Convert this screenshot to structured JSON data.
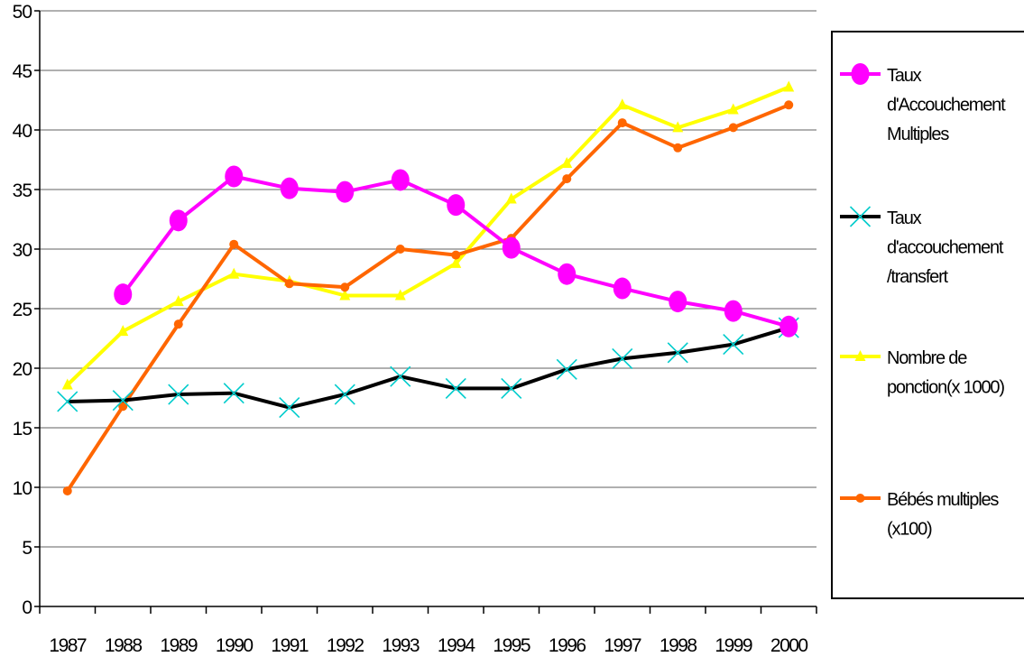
{
  "chart_data": {
    "type": "line",
    "x": [
      "1987",
      "1988",
      "1989",
      "1990",
      "1991",
      "1992",
      "1993",
      "1994",
      "1995",
      "1996",
      "1997",
      "1998",
      "1999",
      "2000"
    ],
    "ylim": [
      0,
      50
    ],
    "yticks": [
      "0",
      "5",
      "10",
      "15",
      "20",
      "25",
      "30",
      "35",
      "40",
      "45",
      "50"
    ],
    "grid": true,
    "legend_position": "right",
    "series": [
      {
        "name": "Taux d'Accouchement Multiples",
        "legend_lines": [
          "Taux",
          "d'Accouchement",
          "Multiples"
        ],
        "color": "#ff00ff",
        "marker": "circle-large",
        "values": [
          null,
          26.2,
          32.4,
          36.1,
          35.1,
          34.8,
          35.8,
          33.7,
          30.1,
          27.9,
          26.7,
          25.6,
          24.8,
          23.5
        ]
      },
      {
        "name": "Taux d'accouchement /transfert",
        "legend_lines": [
          "Taux",
          "d'accouchement",
          "/transfert"
        ],
        "color": "#000000",
        "marker_color": "#00cccc",
        "marker": "x",
        "values": [
          17.2,
          17.3,
          17.8,
          17.9,
          16.7,
          17.8,
          19.3,
          18.3,
          18.3,
          19.9,
          20.8,
          21.3,
          22.0,
          23.4
        ]
      },
      {
        "name": "Nombre de ponction(x 1000)",
        "legend_lines": [
          "Nombre de",
          "ponction(x 1000)"
        ],
        "color": "#ffff00",
        "marker": "triangle",
        "values": [
          18.6,
          23.1,
          25.6,
          27.9,
          27.3,
          26.1,
          26.1,
          28.8,
          34.2,
          37.2,
          42.1,
          40.2,
          41.7,
          43.6
        ]
      },
      {
        "name": "Bébés multiples (x100)",
        "legend_lines": [
          "Bébés multiples",
          "(x100)"
        ],
        "color": "#ff6600",
        "marker": "dot",
        "values": [
          9.7,
          16.8,
          23.7,
          30.4,
          27.1,
          26.8,
          30.0,
          29.5,
          30.9,
          35.9,
          40.6,
          38.5,
          40.2,
          42.1
        ]
      }
    ]
  }
}
